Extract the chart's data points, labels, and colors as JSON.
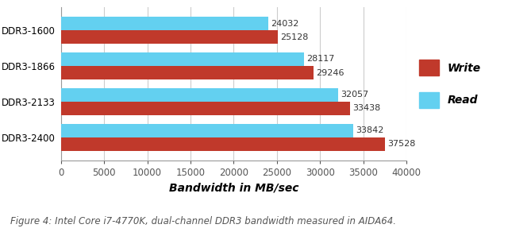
{
  "categories": [
    "DDR3-1600",
    "DDR3-1866",
    "DDR3-2133",
    "DDR3-2400"
  ],
  "write_values": [
    25128,
    29246,
    33438,
    37528
  ],
  "read_values": [
    24032,
    28117,
    32057,
    33842
  ],
  "write_color": "#C0392B",
  "read_color": "#63D0F0",
  "xlim": [
    0,
    40000
  ],
  "xticks": [
    0,
    5000,
    10000,
    15000,
    20000,
    25000,
    30000,
    35000,
    40000
  ],
  "xlabel": "Bandwidth in MB/sec",
  "caption": "Figure 4: Intel Core i7-4770K, dual-channel DDR3 bandwidth measured in AIDA64.",
  "legend_write": "Write",
  "legend_read": "Read",
  "background_color": "#FFFFFF",
  "grid_color": "#CCCCCC",
  "bar_height": 0.38,
  "label_fontsize": 8,
  "tick_fontsize": 8.5,
  "xlabel_fontsize": 10,
  "caption_fontsize": 8.5,
  "caption_color": "#555555"
}
